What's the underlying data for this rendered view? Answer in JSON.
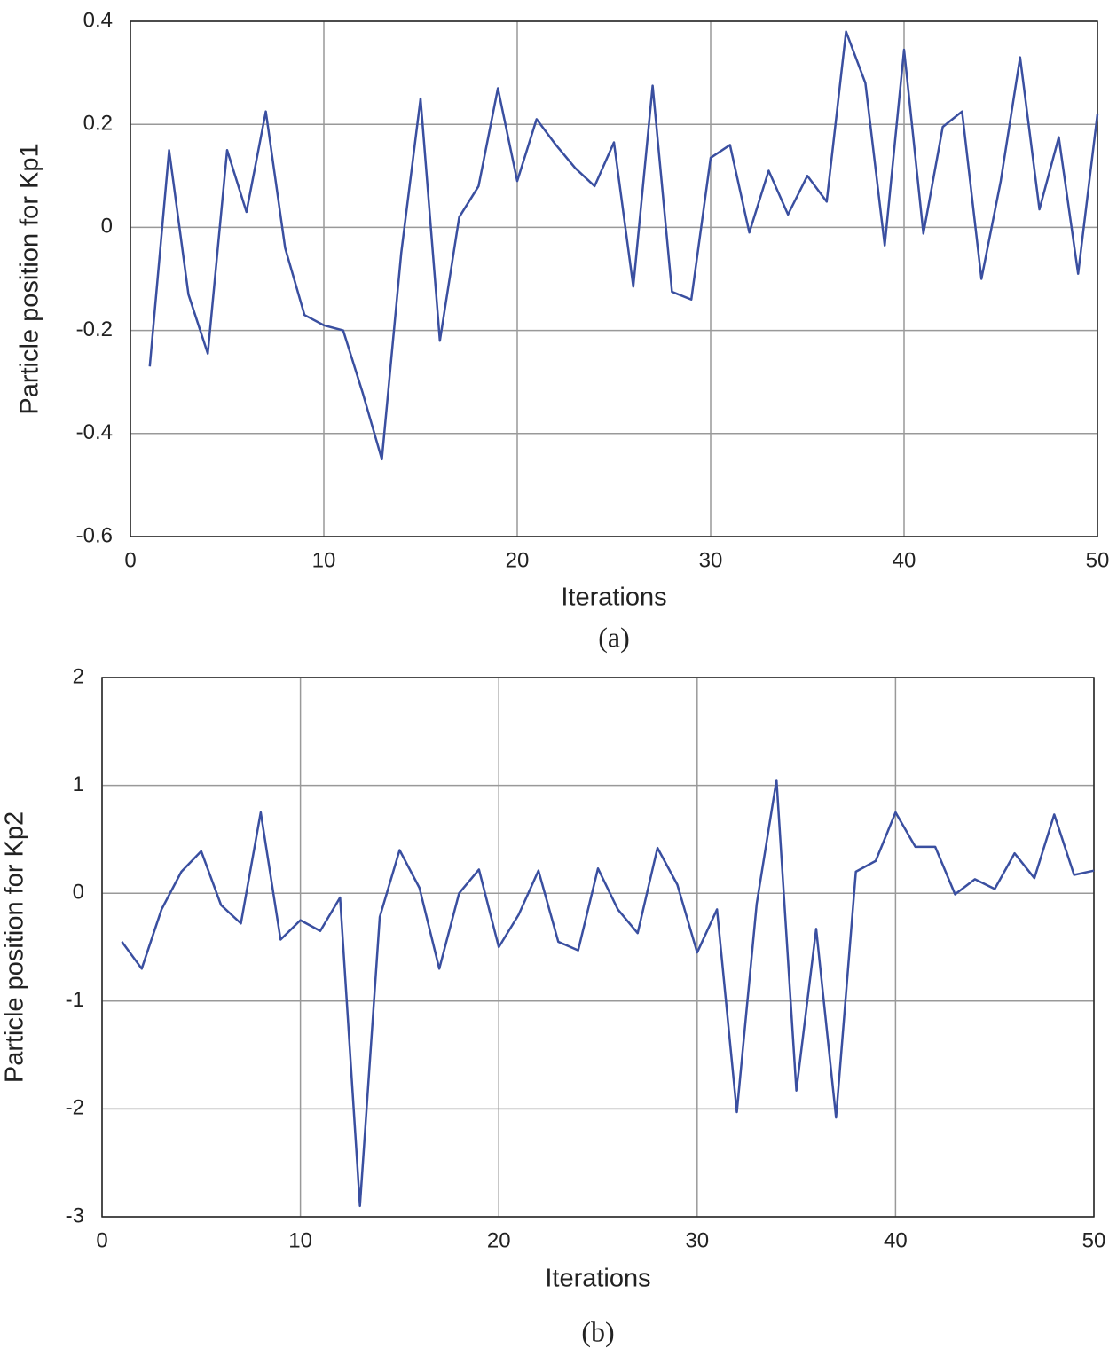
{
  "chart_data": [
    {
      "type": "line",
      "xlabel": "Iterations",
      "ylabel": "Particle position for Kp1",
      "caption": "(a)",
      "x": [
        1,
        2,
        3,
        4,
        5,
        6,
        7,
        8,
        9,
        10,
        11,
        12,
        13,
        14,
        15,
        16,
        17,
        18,
        19,
        20,
        21,
        22,
        23,
        24,
        25,
        26,
        27,
        28,
        29,
        30,
        31,
        32,
        33,
        34,
        35,
        36,
        37,
        38,
        39,
        40,
        41,
        42,
        43,
        44,
        45,
        46,
        47,
        48,
        49,
        50
      ],
      "values": [
        -0.27,
        0.15,
        -0.13,
        -0.245,
        0.15,
        0.03,
        0.225,
        -0.04,
        -0.17,
        -0.19,
        -0.2,
        -0.32,
        -0.45,
        -0.05,
        0.25,
        -0.22,
        0.02,
        0.08,
        0.27,
        0.09,
        0.21,
        0.16,
        0.115,
        0.08,
        0.165,
        -0.115,
        0.275,
        -0.125,
        -0.14,
        0.135,
        0.16,
        -0.01,
        0.11,
        0.025,
        0.1,
        0.05,
        0.38,
        0.28,
        -0.035,
        0.345,
        -0.012,
        0.195,
        0.225,
        -0.1,
        0.09,
        0.33,
        0.035,
        0.175,
        -0.09,
        0.22
      ],
      "color": "#3a4fa0",
      "xlim": [
        0,
        50
      ],
      "xticks": [
        0,
        10,
        20,
        30,
        40,
        50
      ],
      "ylim": [
        -0.6,
        0.4
      ],
      "yticks": [
        -0.6,
        -0.4,
        -0.2,
        0,
        0.2,
        0.4
      ],
      "grid": true
    },
    {
      "type": "line",
      "xlabel": "Iterations",
      "ylabel": "Particle position for Kp2",
      "caption": "(b)",
      "x": [
        1,
        2,
        3,
        4,
        5,
        6,
        7,
        8,
        9,
        10,
        11,
        12,
        13,
        14,
        15,
        16,
        17,
        18,
        19,
        20,
        21,
        22,
        23,
        24,
        25,
        26,
        27,
        28,
        29,
        30,
        31,
        32,
        33,
        34,
        35,
        36,
        37,
        38,
        39,
        40,
        41,
        42,
        43,
        44,
        45,
        46,
        47,
        48,
        49,
        50
      ],
      "values": [
        -0.45,
        -0.7,
        -0.15,
        0.2,
        0.39,
        -0.11,
        -0.28,
        0.75,
        -0.43,
        -0.25,
        -0.35,
        -0.04,
        -2.9,
        -0.22,
        0.4,
        0.05,
        -0.7,
        0.0,
        0.22,
        -0.5,
        -0.2,
        0.21,
        -0.45,
        -0.53,
        0.23,
        -0.15,
        -0.37,
        0.42,
        0.08,
        -0.55,
        -0.15,
        -2.03,
        -0.1,
        1.05,
        -1.83,
        -0.33,
        -2.08,
        0.2,
        0.3,
        0.75,
        0.43,
        0.43,
        -0.01,
        0.13,
        0.04,
        0.37,
        0.14,
        0.73,
        0.17,
        0.21
      ],
      "color": "#3a4fa0",
      "xlim": [
        0,
        50
      ],
      "xticks": [
        0,
        10,
        20,
        30,
        40,
        50
      ],
      "ylim": [
        -3,
        2
      ],
      "yticks": [
        -3,
        -2,
        -1,
        0,
        1,
        2
      ],
      "grid": true
    }
  ]
}
